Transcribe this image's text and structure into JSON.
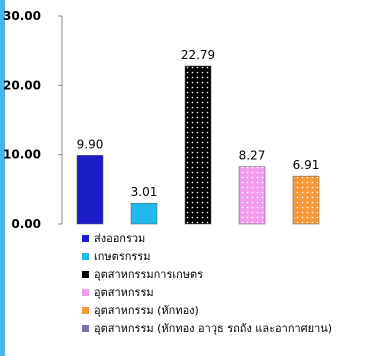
{
  "chart_data": {
    "type": "bar",
    "title": "",
    "xlabel": "",
    "ylabel": "",
    "ylim": [
      0,
      30
    ],
    "yticks": [
      "0.00",
      "10.00",
      "20.00",
      "30.00"
    ],
    "grid": false,
    "legend_position": "bottom",
    "series": [
      {
        "name": "ส่งออกรวม",
        "value": 9.9,
        "label": "9.90",
        "color": "#1c1cc8",
        "pattern": "solid"
      },
      {
        "name": "เกษตรกรรม",
        "value": 3.01,
        "label": "3.01",
        "color": "#22b8ee",
        "pattern": "solid"
      },
      {
        "name": "อุตสาหกรรมการเกษตร",
        "value": 22.79,
        "label": "22.79",
        "color": "#000000",
        "pattern": "dots-light"
      },
      {
        "name": "อุตสาหกรรม",
        "value": 8.27,
        "label": "8.27",
        "color": "#f29cf0",
        "pattern": "dots-dark"
      },
      {
        "name": "อุตสาหกรรม (หักทอง)",
        "value": 6.91,
        "label": "6.91",
        "color": "#f7983a",
        "pattern": "dots-dark"
      }
    ],
    "extra_legend": [
      {
        "name": "อุตสาหกรรม (หักทอง อาวุธ รถถัง และอากาศยาน)",
        "color": "#7b6fb0"
      }
    ]
  }
}
